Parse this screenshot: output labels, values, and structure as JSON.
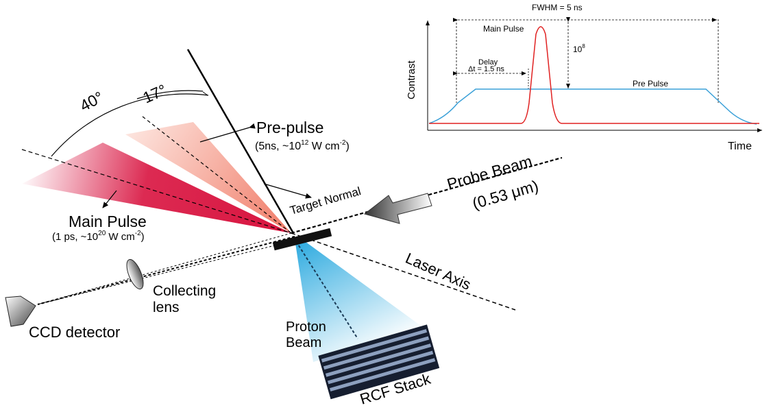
{
  "colors": {
    "main_pulse": "#d8143f",
    "pre_pulse": "#f4a28e",
    "proton_beam": "#2aa9df",
    "inset_main": "#e02020",
    "inset_pre": "#3aa0d8"
  },
  "angles": {
    "outer": "40°",
    "inner": "17°"
  },
  "pre_pulse": {
    "title": "Pre-pulse",
    "params_prefix": "(5ns, ~10",
    "params_exp": "12",
    "params_mid": " W cm",
    "params_exp2": "-2",
    "params_suffix": ")"
  },
  "main_pulse": {
    "title": "Main Pulse",
    "params_prefix": "(1 ps, ~10",
    "params_exp": "20",
    "params_mid": " W cm",
    "params_exp2": "-2",
    "params_suffix": ")"
  },
  "target_normal": "Target Normal",
  "probe_beam": {
    "title": "Probe Beam",
    "wavelength": "(0.53 μm)"
  },
  "laser_axis": "Laser Axis",
  "collecting_lens": {
    "line1": "Collecting",
    "line2": "lens"
  },
  "ccd_detector": "CCD detector",
  "proton_beam": {
    "line1": "Proton",
    "line2": "Beam"
  },
  "rcf_stack": "RCF Stack",
  "inset": {
    "fwhm": "FWHM  = 5 ns",
    "main_pulse": "Main Pulse",
    "contrast_base": "10",
    "contrast_exp": "8",
    "delay_line1": "Delay",
    "delay_line2": "Δt = 1.5 ns",
    "pre_pulse": "Pre Pulse",
    "ylabel": "Contrast",
    "xlabel": "Time"
  }
}
